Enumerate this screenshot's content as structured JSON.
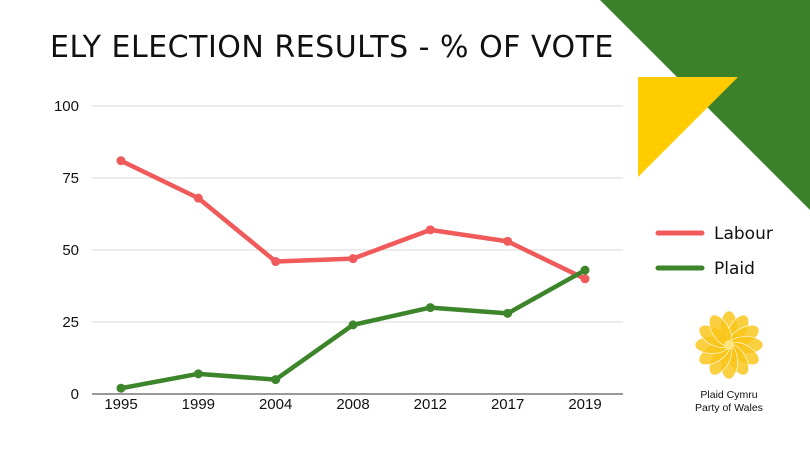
{
  "chart_data": {
    "type": "line",
    "title": "ELY ELECTION RESULTS - % OF VOTE",
    "xlabel": "",
    "ylabel": "",
    "categories": [
      "1995",
      "1999",
      "2004",
      "2008",
      "2012",
      "2017",
      "2019"
    ],
    "ylim": [
      0,
      100
    ],
    "yticks": [
      "0",
      "25",
      "50",
      "75",
      "100"
    ],
    "grid": true,
    "legend_position": "right",
    "series": [
      {
        "name": "Labour",
        "color": "#f05a5a",
        "values": [
          81,
          68,
          46,
          47,
          57,
          53,
          40
        ]
      },
      {
        "name": "Plaid",
        "color": "#3d852a",
        "values": [
          2,
          7,
          5,
          24,
          30,
          28,
          43
        ]
      }
    ]
  },
  "decor": {
    "corner_green": "#3b8129",
    "corner_yellow": "#ffcc00",
    "logo_icon": "plaid-cymru-poppy-icon",
    "logo_color": "#f9c416"
  },
  "logo": {
    "line1": "Plaid Cymru",
    "line2": "Party of Wales"
  }
}
